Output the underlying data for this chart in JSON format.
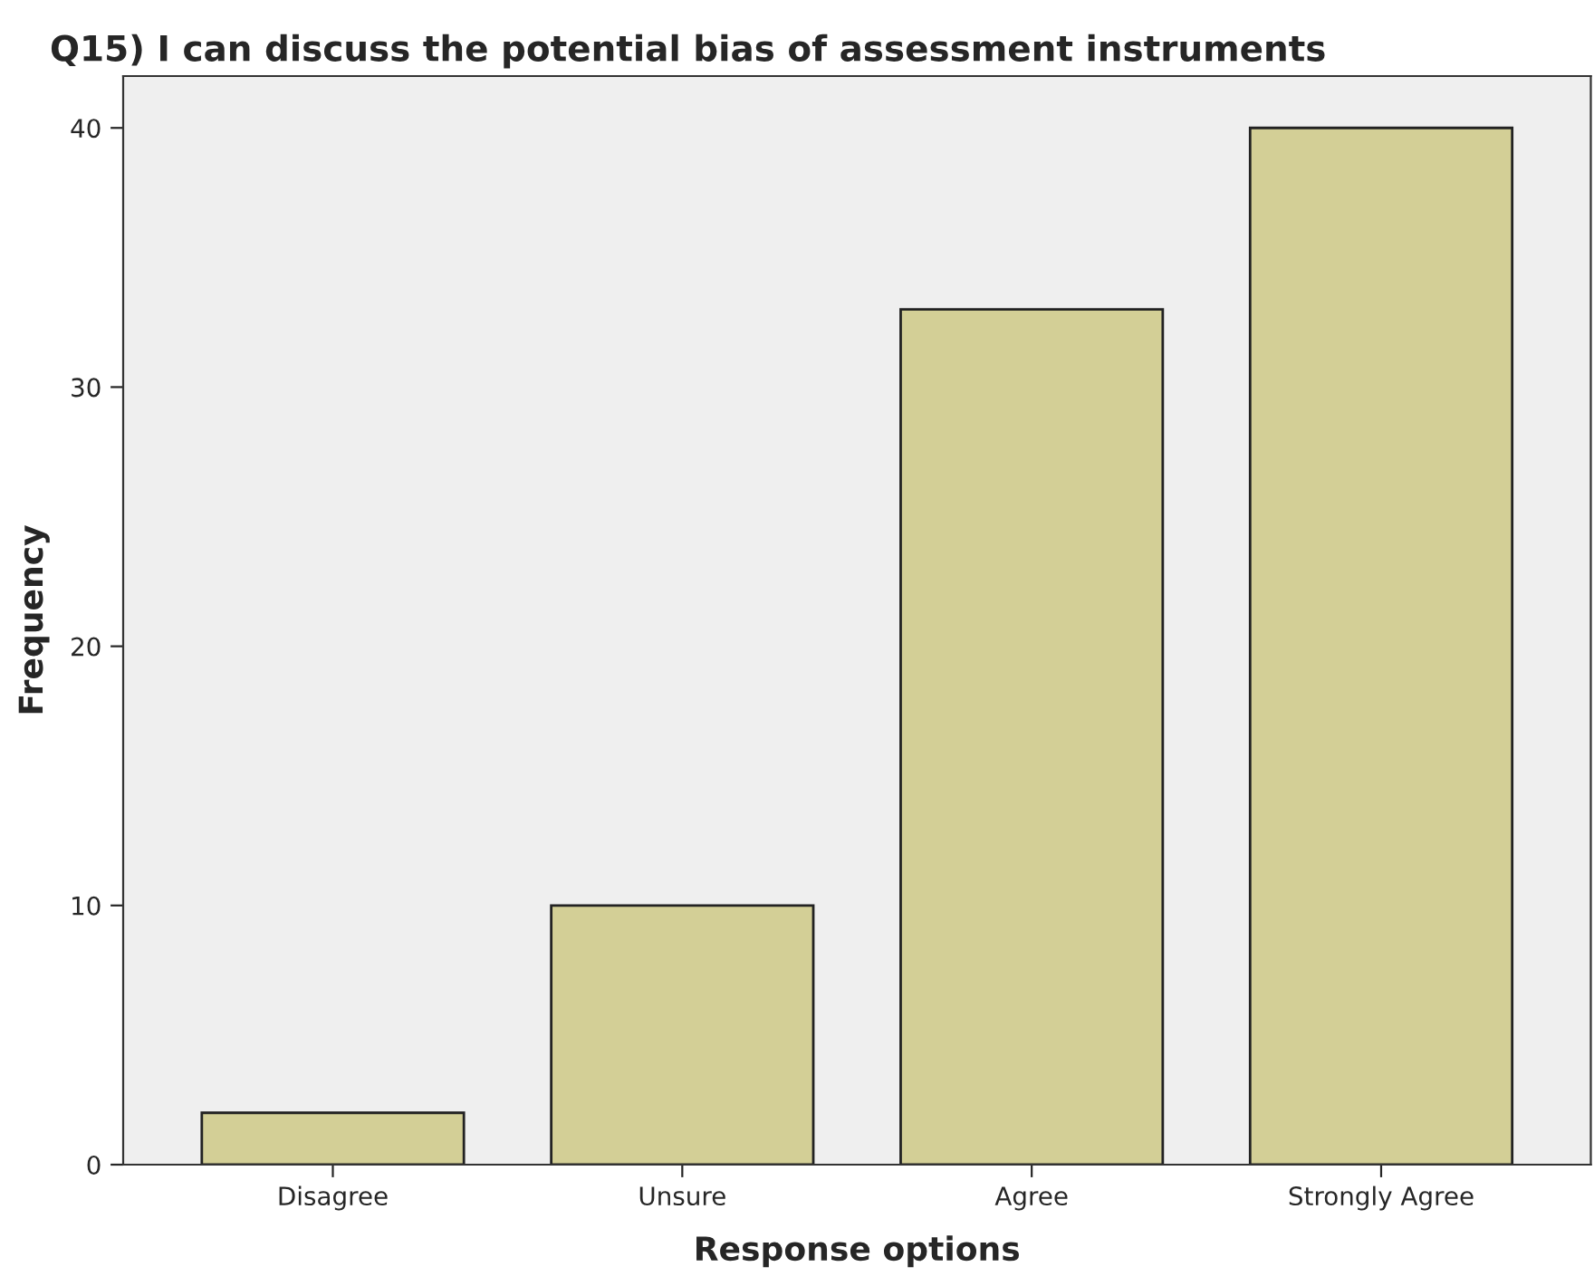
{
  "chart_data": {
    "type": "bar",
    "title": "Q15) I can discuss the potential bias of assessment instruments",
    "xlabel": "Response options",
    "ylabel": "Frequency",
    "categories": [
      "Disagree",
      "Unsure",
      "Agree",
      "Strongly Agree"
    ],
    "values": [
      2,
      10,
      33,
      40
    ],
    "color": "#d3cf96",
    "ylim": [
      0,
      42
    ],
    "yticks": [
      0,
      10,
      20,
      30,
      40
    ],
    "grid": false,
    "legend": false
  }
}
